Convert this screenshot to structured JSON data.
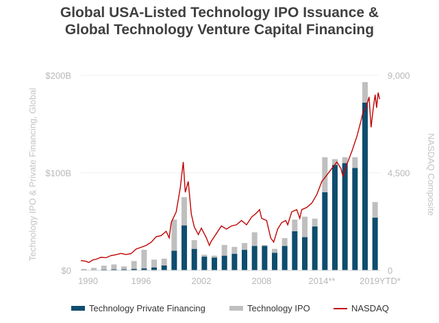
{
  "title_line1": "Global USA-Listed Technology IPO Issuance &",
  "title_line2": "Global Technology Venture Capital Financing",
  "chart_data": {
    "type": "bar",
    "x_tick_labels": [
      "1990",
      "1996",
      "2002",
      "2008",
      "2014**",
      "2019YTD*"
    ],
    "y_left_ticks": [
      "$0",
      "$100B",
      "$200B"
    ],
    "y_right_ticks": [
      "0",
      "4,500",
      "9,000"
    ],
    "ylabel_left": "Technology IPO & Private Financing, Global",
    "ylabel_right": "NASDAQ Composite",
    "ylim_left": [
      0,
      200
    ],
    "ylim_right": [
      0,
      9000
    ],
    "years": [
      1990,
      1991,
      1992,
      1993,
      1994,
      1995,
      1996,
      1997,
      1998,
      1999,
      2000,
      2001,
      2002,
      2003,
      2004,
      2005,
      2006,
      2007,
      2008,
      2009,
      2010,
      2011,
      2012,
      2013,
      2014,
      2015,
      2016,
      2017,
      2018,
      2019
    ],
    "series": [
      {
        "name": "Technology Private Financing",
        "color": "#0e4d6e",
        "values": [
          0.5,
          0.5,
          0.8,
          1,
          1,
          1.5,
          2,
          3,
          5,
          20,
          46,
          22,
          14,
          13,
          15,
          17,
          21,
          25,
          25,
          18,
          25,
          40,
          34,
          45,
          80,
          108,
          110,
          105,
          172,
          54
        ]
      },
      {
        "name": "Technology IPO",
        "color": "#bfbfbf",
        "values": [
          1,
          2,
          4,
          5,
          3,
          8,
          19,
          8,
          7,
          32,
          29,
          9,
          2,
          2,
          11,
          7,
          7,
          14,
          1,
          4,
          8,
          12,
          21,
          8,
          36,
          6,
          6,
          11,
          21,
          16
        ]
      },
      {
        "name": "NASDAQ",
        "color": "#c00000",
        "points": [
          [
            1990.0,
            450
          ],
          [
            1990.5,
            420
          ],
          [
            1990.8,
            360
          ],
          [
            1991.2,
            480
          ],
          [
            1991.6,
            520
          ],
          [
            1992.0,
            600
          ],
          [
            1992.5,
            580
          ],
          [
            1993.0,
            680
          ],
          [
            1993.5,
            720
          ],
          [
            1994.0,
            780
          ],
          [
            1994.5,
            730
          ],
          [
            1995.0,
            770
          ],
          [
            1995.5,
            980
          ],
          [
            1996.0,
            1060
          ],
          [
            1996.5,
            1150
          ],
          [
            1997.0,
            1290
          ],
          [
            1997.5,
            1550
          ],
          [
            1998.0,
            1600
          ],
          [
            1998.5,
            1800
          ],
          [
            1998.8,
            1500
          ],
          [
            1999.0,
            2200
          ],
          [
            1999.5,
            2700
          ],
          [
            1999.9,
            3800
          ],
          [
            2000.2,
            5000
          ],
          [
            2000.4,
            3600
          ],
          [
            2000.7,
            4100
          ],
          [
            2001.0,
            2600
          ],
          [
            2001.3,
            2000
          ],
          [
            2001.7,
            1650
          ],
          [
            2002.0,
            1950
          ],
          [
            2002.5,
            1500
          ],
          [
            2002.8,
            1150
          ],
          [
            2003.0,
            1350
          ],
          [
            2003.5,
            1700
          ],
          [
            2004.0,
            2050
          ],
          [
            2004.5,
            1900
          ],
          [
            2005.0,
            2050
          ],
          [
            2005.5,
            2100
          ],
          [
            2006.0,
            2300
          ],
          [
            2006.5,
            2100
          ],
          [
            2007.0,
            2450
          ],
          [
            2007.5,
            2650
          ],
          [
            2007.8,
            2800
          ],
          [
            2008.0,
            2400
          ],
          [
            2008.5,
            2300
          ],
          [
            2008.9,
            1500
          ],
          [
            2009.2,
            1300
          ],
          [
            2009.6,
            1900
          ],
          [
            2010.0,
            2200
          ],
          [
            2010.4,
            2300
          ],
          [
            2010.6,
            2100
          ],
          [
            2011.0,
            2700
          ],
          [
            2011.5,
            2800
          ],
          [
            2011.8,
            2400
          ],
          [
            2012.0,
            2800
          ],
          [
            2012.5,
            2900
          ],
          [
            2013.0,
            3100
          ],
          [
            2013.5,
            3500
          ],
          [
            2014.0,
            4100
          ],
          [
            2014.5,
            4400
          ],
          [
            2015.0,
            4700
          ],
          [
            2015.5,
            5000
          ],
          [
            2015.9,
            4700
          ],
          [
            2016.1,
            4350
          ],
          [
            2016.5,
            4900
          ],
          [
            2017.0,
            5500
          ],
          [
            2017.5,
            6200
          ],
          [
            2017.9,
            6900
          ],
          [
            2018.1,
            7300
          ],
          [
            2018.4,
            7500
          ],
          [
            2018.7,
            8000
          ],
          [
            2018.9,
            6600
          ],
          [
            2019.1,
            7400
          ],
          [
            2019.3,
            8100
          ],
          [
            2019.45,
            7500
          ],
          [
            2019.6,
            8200
          ],
          [
            2019.75,
            7900
          ]
        ]
      }
    ],
    "legend_position": "bottom"
  },
  "legend": {
    "private": "Technology Private Financing",
    "ipo": "Technology IPO",
    "nasdaq": "NASDAQ"
  }
}
